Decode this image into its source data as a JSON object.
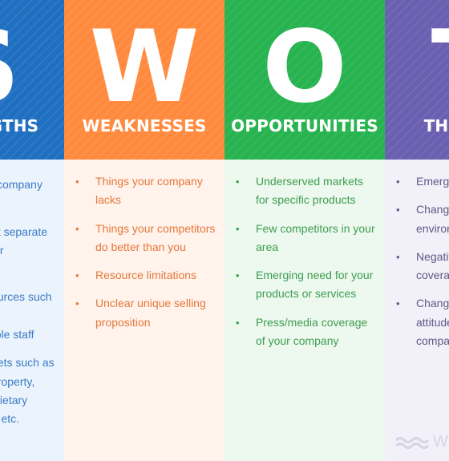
{
  "columns": [
    {
      "letter": "S",
      "title": "STRENGTHS",
      "items": [
        "Things your company does well",
        "Qualities that separate you from your competitors",
        "Internal resources such as skilled, knowledgeable staff",
        "Tangible assets such as intellectual property, capital, proprietary technologies etc."
      ]
    },
    {
      "letter": "W",
      "title": "WEAKNESSES",
      "items": [
        "Things your company lacks",
        "Things your competitors do better than you",
        "Resource limitations",
        "Unclear unique selling proposition"
      ]
    },
    {
      "letter": "O",
      "title": "OPPORTUNITIES",
      "items": [
        "Underserved markets for specific products",
        "Few competitors in your area",
        "Emerging need for your products or services",
        "Press/media coverage of your company"
      ]
    },
    {
      "letter": "T",
      "title": "THREATS",
      "items": [
        "Emerging competitors",
        "Changing regulatory environment",
        "Negative press/media coverage",
        "Changing customer attitudes toward your company"
      ]
    }
  ],
  "watermark": {
    "text": "W",
    "icon": "wave-logo-icon"
  },
  "colors": {
    "strengths": "#1f6fc0",
    "weaknesses": "#ff8a3d",
    "opportunities": "#27b34f",
    "threats": "#6a5fb0"
  }
}
